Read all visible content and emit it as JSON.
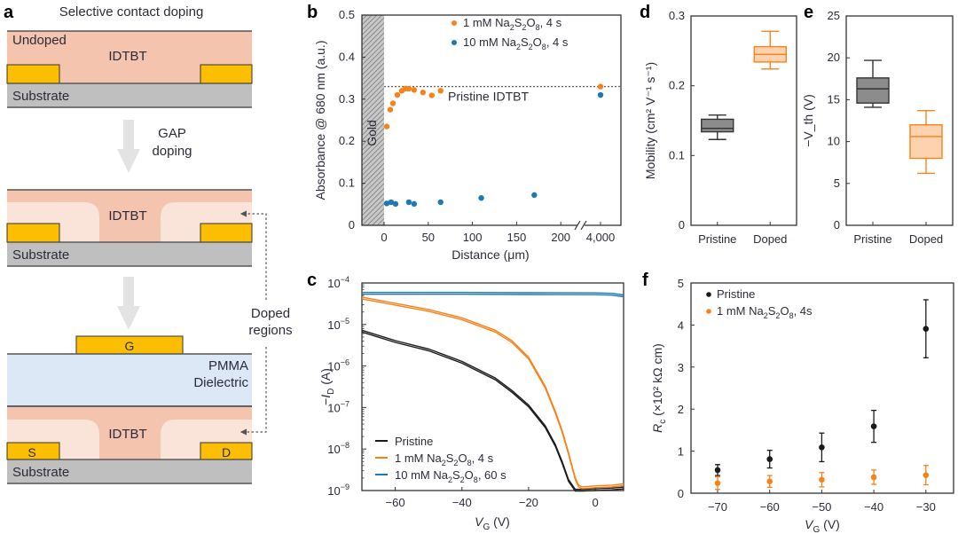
{
  "colors": {
    "orange": "#f7821b",
    "blue": "#1f77b4",
    "black": "#1a1a1a",
    "pristine_box": "#8c8c8c",
    "doped_box_fill": "#fdd2ae",
    "idtbt": "#f4c4ae",
    "idtbt_doped": "#fae3d8",
    "gold": "#fcbe00",
    "substrate": "#bfbfbf",
    "pmma": "#dce8f5",
    "arrow": "#e3e3e3"
  },
  "panel_a": {
    "letter": "a",
    "title": "Selective contact doping",
    "undoped": "Undoped",
    "idtbt": "IDTBT",
    "substrate": "Substrate",
    "step1": [
      "GAP",
      "doping"
    ],
    "doped_regions": [
      "Doped",
      "regions"
    ],
    "gate": "G",
    "pmma": [
      "PMMA",
      "Dielectric"
    ],
    "source": "S",
    "drain": "D"
  },
  "chart_data": [
    {
      "panel": "b",
      "type": "scatter",
      "xlabel": "Distance (μm)",
      "ylabel": "Absorbance @ 680 nm (a.u.)",
      "ylim": [
        0,
        0.5
      ],
      "xlim_main": [
        -25,
        225
      ],
      "x_break": true,
      "xticks": [
        "0",
        "50",
        "100",
        "150",
        "200",
        "4,000"
      ],
      "yticks": [
        "0",
        "0.1",
        "0.2",
        "0.3",
        "0.4",
        "0.5"
      ],
      "shaded_region": {
        "label": "Gold",
        "x": [
          -25,
          0
        ]
      },
      "reference_line": {
        "label": "Pristine IDTBT",
        "y": 0.33
      },
      "legend_position": "top",
      "series": [
        {
          "name": "1 mM Na2S2O8, 4 s",
          "label_parts": [
            "1 mM Na",
            "2",
            "S",
            "2",
            "O",
            "8",
            ", 4 s"
          ],
          "color": "orange",
          "points": [
            [
              3,
              0.235
            ],
            [
              7,
              0.275
            ],
            [
              10,
              0.29
            ],
            [
              15,
              0.31
            ],
            [
              20,
              0.32
            ],
            [
              24,
              0.325
            ],
            [
              28,
              0.325
            ],
            [
              34,
              0.322
            ],
            [
              44,
              0.316
            ],
            [
              54,
              0.309
            ],
            [
              64,
              0.32
            ],
            [
              4000,
              0.33
            ]
          ]
        },
        {
          "name": "10 mM Na2S2O8, 4 s",
          "label_parts": [
            "10 mM Na",
            "2",
            "S",
            "2",
            "O",
            "8",
            ", 4 s"
          ],
          "color": "blue",
          "points": [
            [
              3,
              0.052
            ],
            [
              8,
              0.055
            ],
            [
              13,
              0.051
            ],
            [
              28,
              0.055
            ],
            [
              34,
              0.051
            ],
            [
              64,
              0.055
            ],
            [
              110,
              0.065
            ],
            [
              170,
              0.072
            ],
            [
              4000,
              0.31
            ]
          ]
        }
      ]
    },
    {
      "panel": "c",
      "type": "line",
      "xlabel": "V_G (V)",
      "ylabel": "−I_D (A)",
      "xlim": [
        -70,
        8.5
      ],
      "ylim_log10": [
        -9,
        -4
      ],
      "xticks": [
        "−60",
        "−40",
        "−20",
        "0"
      ],
      "yticks": [
        "10⁻⁴",
        "10⁻⁵",
        "10⁻⁶",
        "10⁻⁷",
        "10⁻⁸",
        "10⁻⁹"
      ],
      "legend_position": "bottom-left",
      "series": [
        {
          "name": "Pristine",
          "label_parts": [
            "Pristine"
          ],
          "color": "black",
          "x": [
            -70,
            -60,
            -50,
            -40,
            -30,
            -25,
            -20,
            -15,
            -12,
            -10,
            -8,
            -6,
            -4,
            0,
            5,
            8.5
          ],
          "log10_y": [
            -5.15,
            -5.4,
            -5.6,
            -5.9,
            -6.3,
            -6.6,
            -6.95,
            -7.45,
            -7.9,
            -8.3,
            -8.75,
            -8.98,
            -8.98,
            -8.97,
            -8.95,
            -8.93
          ]
        },
        {
          "name": "1 mM Na2S2O8, 4 s",
          "label_parts": [
            "1 mM Na",
            "2",
            "S",
            "2",
            "O",
            "8",
            ", 4 s"
          ],
          "color": "orange",
          "x": [
            -70,
            -60,
            -50,
            -40,
            -30,
            -25,
            -20,
            -15,
            -12,
            -10,
            -8,
            -6,
            -5,
            -4,
            0,
            5,
            8.5
          ],
          "log10_y": [
            -4.35,
            -4.5,
            -4.65,
            -4.85,
            -5.15,
            -5.4,
            -5.8,
            -6.5,
            -7.1,
            -7.55,
            -8.1,
            -8.7,
            -8.88,
            -8.92,
            -8.9,
            -8.88,
            -8.85
          ]
        },
        {
          "name": "10 mM Na2S2O8, 60 s",
          "label_parts": [
            "10 mM Na",
            "2",
            "S",
            "2",
            "O",
            "8",
            ", 60 s"
          ],
          "color": "blue",
          "x": [
            -70,
            -40,
            -20,
            0,
            5,
            8.5
          ],
          "log10_y": [
            -4.24,
            -4.24,
            -4.245,
            -4.25,
            -4.26,
            -4.3
          ]
        }
      ]
    },
    {
      "panel": "d",
      "type": "box",
      "ylabel": "Mobility (cm² V⁻¹ s⁻¹)",
      "ylim": [
        0,
        0.3
      ],
      "yticks": [
        "0",
        "0.1",
        "0.2",
        "0.3"
      ],
      "categories": [
        "Pristine",
        "Doped"
      ],
      "boxes": [
        {
          "name": "Pristine",
          "min": 0.123,
          "q1": 0.134,
          "median": 0.139,
          "q3": 0.152,
          "max": 0.158,
          "color": "pristine"
        },
        {
          "name": "Doped",
          "min": 0.224,
          "q1": 0.234,
          "median": 0.245,
          "q3": 0.256,
          "max": 0.278,
          "color": "doped"
        }
      ]
    },
    {
      "panel": "e",
      "type": "box",
      "ylabel": "−V_th (V)",
      "ylim": [
        0,
        25
      ],
      "yticks": [
        "0",
        "5",
        "10",
        "15",
        "20",
        "25"
      ],
      "categories": [
        "Pristine",
        "Doped"
      ],
      "boxes": [
        {
          "name": "Pristine",
          "min": 14.1,
          "q1": 14.6,
          "median": 16.3,
          "q3": 17.6,
          "max": 19.7,
          "color": "pristine"
        },
        {
          "name": "Doped",
          "min": 6.2,
          "q1": 8.0,
          "median": 10.6,
          "q3": 12.0,
          "max": 13.7,
          "color": "doped"
        }
      ]
    },
    {
      "panel": "f",
      "type": "scatter",
      "xlabel": "V_G (V)",
      "ylabel": "R_c (×10² kΩ cm)",
      "xlim": [
        -75,
        -26
      ],
      "ylim": [
        0,
        5
      ],
      "xticks": [
        "−70",
        "−60",
        "−50",
        "−40",
        "−30"
      ],
      "yticks": [
        "0",
        "1",
        "2",
        "3",
        "4",
        "5"
      ],
      "legend_position": "top-left",
      "series": [
        {
          "name": "Pristine",
          "label_parts": [
            "Pristine"
          ],
          "color": "black",
          "points": [
            [
              -70,
              0.55,
              0.13
            ],
            [
              -60,
              0.81,
              0.21
            ],
            [
              -50,
              1.09,
              0.34
            ],
            [
              -40,
              1.59,
              0.38
            ],
            [
              -30,
              3.91,
              0.69
            ]
          ]
        },
        {
          "name": "1 mM Na2S2O8, 4s",
          "label_parts": [
            "1 mM Na",
            "2",
            "S",
            "2",
            "O",
            "8",
            ", 4s"
          ],
          "color": "orange",
          "points": [
            [
              -70,
              0.24,
              0.15
            ],
            [
              -60,
              0.28,
              0.14
            ],
            [
              -50,
              0.32,
              0.17
            ],
            [
              -40,
              0.38,
              0.17
            ],
            [
              -30,
              0.43,
              0.23
            ]
          ]
        }
      ]
    }
  ],
  "panel_letters": {
    "b": "b",
    "c": "c",
    "d": "d",
    "e": "e",
    "f": "f"
  }
}
